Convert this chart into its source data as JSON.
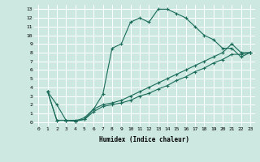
{
  "xlabel": "Humidex (Indice chaleur)",
  "bg_color": "#cce8e0",
  "grid_color": "#ffffff",
  "line_color": "#1a6b5a",
  "xlim": [
    -0.5,
    23.5
  ],
  "ylim": [
    -0.5,
    13.5
  ],
  "xticks": [
    0,
    1,
    2,
    3,
    4,
    5,
    6,
    7,
    8,
    9,
    10,
    11,
    12,
    13,
    14,
    15,
    16,
    17,
    18,
    19,
    20,
    21,
    22,
    23
  ],
  "yticks": [
    0,
    1,
    2,
    3,
    4,
    5,
    6,
    7,
    8,
    9,
    10,
    11,
    12,
    13
  ],
  "curve1_x": [
    1,
    2,
    3,
    4,
    5,
    6,
    7,
    8,
    9,
    10,
    11,
    12,
    13,
    14,
    15,
    16,
    17,
    18,
    19,
    20,
    21,
    22,
    23
  ],
  "curve1_y": [
    3.5,
    2.0,
    0.2,
    0.2,
    0.3,
    1.5,
    3.2,
    8.5,
    9.0,
    11.5,
    12.0,
    11.5,
    13.0,
    13.0,
    12.5,
    12.0,
    11.0,
    10.0,
    9.5,
    8.5,
    8.5,
    7.5,
    8.0
  ],
  "curve2_x": [
    1,
    2,
    3,
    4,
    5,
    6,
    7,
    8,
    9,
    10,
    11,
    12,
    13,
    14,
    15,
    16,
    17,
    18,
    19,
    20,
    21,
    22,
    23
  ],
  "curve2_y": [
    3.5,
    0.2,
    0.2,
    0.1,
    0.5,
    1.5,
    2.0,
    2.2,
    2.5,
    3.0,
    3.5,
    4.0,
    4.5,
    5.0,
    5.5,
    6.0,
    6.5,
    7.0,
    7.5,
    8.0,
    9.0,
    8.0,
    8.0
  ],
  "curve3_x": [
    1,
    2,
    3,
    4,
    5,
    6,
    7,
    8,
    9,
    10,
    11,
    12,
    13,
    14,
    15,
    16,
    17,
    18,
    19,
    20,
    21,
    22,
    23
  ],
  "curve3_y": [
    3.5,
    0.2,
    0.2,
    0.1,
    0.3,
    1.2,
    1.8,
    2.0,
    2.2,
    2.5,
    3.0,
    3.3,
    3.8,
    4.2,
    4.8,
    5.2,
    5.8,
    6.2,
    6.8,
    7.2,
    7.8,
    7.8,
    8.0
  ]
}
